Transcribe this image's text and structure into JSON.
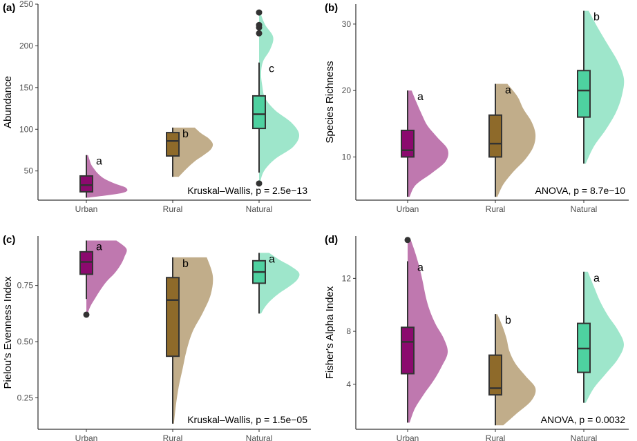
{
  "colors": {
    "Urban": "#8b0a6e",
    "Rural": "#8e6a2a",
    "Natural": "#4ed1a0"
  },
  "chart_data": [
    {
      "type": "raincloud",
      "panel_label": "(a)",
      "ylabel": "Abundance",
      "categories": [
        "Urban",
        "Rural",
        "Natural"
      ],
      "ylim": [
        15,
        250
      ],
      "yticks": [
        50,
        100,
        150,
        200,
        250
      ],
      "ytick_labels": [
        "50",
        "100",
        "150",
        "200",
        "250"
      ],
      "stat_text": "Kruskal–Wallis, p = 2.5e−13",
      "groups": [
        {
          "name": "Urban",
          "q1": 25,
          "median": 33,
          "q3": 44,
          "whisker_low": 18,
          "whisker_high": 69,
          "outliers": [],
          "letter": "a",
          "density_range": [
            18,
            69
          ],
          "density": [
            0.05,
            0.9,
            1.0,
            0.7,
            0.45,
            0.3,
            0.2,
            0.12,
            0.08,
            0.04
          ]
        },
        {
          "name": "Rural",
          "q1": 68,
          "median": 86,
          "q3": 96,
          "whisker_low": 43,
          "whisker_high": 102,
          "outliers": [],
          "letter": "b",
          "density_range": [
            43,
            102
          ],
          "density": [
            0.15,
            0.28,
            0.42,
            0.58,
            0.78,
            0.95,
            1.0,
            0.9,
            0.7,
            0.55
          ]
        },
        {
          "name": "Natural",
          "q1": 101,
          "median": 118,
          "q3": 140,
          "whisker_low": 48,
          "whisker_high": 180,
          "outliers": [
            35,
            215,
            222,
            225,
            240
          ],
          "letter": "c",
          "density_range": [
            35,
            240
          ],
          "density": [
            0.02,
            0.12,
            0.4,
            0.85,
            1.0,
            0.8,
            0.4,
            0.15,
            0.08,
            0.05,
            0.1,
            0.28,
            0.35,
            0.15,
            0.03
          ]
        }
      ]
    },
    {
      "type": "raincloud",
      "panel_label": "(b)",
      "ylabel": "Species Richness",
      "categories": [
        "Urban",
        "Rural",
        "Natural"
      ],
      "ylim": [
        3.5,
        33
      ],
      "yticks": [
        10,
        20,
        30
      ],
      "ytick_labels": [
        "10",
        "20",
        "30"
      ],
      "stat_text": "ANOVA, p = 8.7e−10",
      "groups": [
        {
          "name": "Urban",
          "q1": 10,
          "median": 11,
          "q3": 14,
          "whisker_low": 4,
          "whisker_high": 20,
          "outliers": [],
          "letter": "a",
          "density_range": [
            4,
            20
          ],
          "density": [
            0.05,
            0.2,
            0.6,
            0.95,
            1.0,
            0.75,
            0.5,
            0.35,
            0.22,
            0.1
          ]
        },
        {
          "name": "Rural",
          "q1": 10,
          "median": 12,
          "q3": 16.3,
          "whisker_low": 4,
          "whisker_high": 21,
          "outliers": [],
          "letter": "a",
          "density_range": [
            4,
            21
          ],
          "density": [
            0.05,
            0.2,
            0.45,
            0.75,
            0.95,
            1.0,
            0.9,
            0.7,
            0.55,
            0.3
          ]
        },
        {
          "name": "Natural",
          "q1": 16,
          "median": 20,
          "q3": 23,
          "whisker_low": 9,
          "whisker_high": 32,
          "outliers": [],
          "letter": "b",
          "density_range": [
            9,
            32
          ],
          "density": [
            0.05,
            0.25,
            0.55,
            0.8,
            0.95,
            1.0,
            0.85,
            0.6,
            0.35,
            0.12
          ]
        }
      ]
    },
    {
      "type": "raincloud",
      "panel_label": "(c)",
      "ylabel": "Pielou's Evenness Index",
      "categories": [
        "Urban",
        "Rural",
        "Natural"
      ],
      "ylim": [
        0.11,
        0.97
      ],
      "yticks": [
        0.25,
        0.5,
        0.75
      ],
      "ytick_labels": [
        "0.25",
        "0.50",
        "0.75"
      ],
      "stat_text": "Kruskal–Wallis, p = 1.5e−05",
      "groups": [
        {
          "name": "Urban",
          "q1": 0.8,
          "median": 0.855,
          "q3": 0.9,
          "whisker_low": 0.69,
          "whisker_high": 0.95,
          "outliers": [
            0.62
          ],
          "letter": "a",
          "density_range": [
            0.62,
            0.95
          ],
          "density": [
            0.02,
            0.1,
            0.22,
            0.35,
            0.5,
            0.7,
            0.85,
            0.95,
            1.0,
            0.75
          ]
        },
        {
          "name": "Rural",
          "q1": 0.435,
          "median": 0.685,
          "q3": 0.785,
          "whisker_low": 0.135,
          "whisker_high": 0.875,
          "outliers": [],
          "letter": "b",
          "density_range": [
            0.135,
            0.875
          ],
          "density": [
            0.03,
            0.08,
            0.15,
            0.25,
            0.35,
            0.5,
            0.75,
            0.95,
            1.0,
            0.85
          ]
        },
        {
          "name": "Natural",
          "q1": 0.76,
          "median": 0.81,
          "q3": 0.86,
          "whisker_low": 0.625,
          "whisker_high": 0.895,
          "outliers": [],
          "letter": "a",
          "density_range": [
            0.625,
            0.895
          ],
          "density": [
            0.05,
            0.15,
            0.3,
            0.5,
            0.75,
            0.95,
            1.0,
            0.8,
            0.5,
            0.25
          ]
        }
      ]
    },
    {
      "type": "raincloud",
      "panel_label": "(d)",
      "ylabel": "Fisher's Alpha Index",
      "categories": [
        "Urban",
        "Rural",
        "Natural"
      ],
      "ylim": [
        0.6,
        15.2
      ],
      "yticks": [
        4,
        8,
        12
      ],
      "ytick_labels": [
        "4",
        "8",
        "12"
      ],
      "stat_text": "ANOVA, p = 0.0032",
      "groups": [
        {
          "name": "Urban",
          "q1": 4.8,
          "median": 7.2,
          "q3": 8.3,
          "whisker_low": 1.1,
          "whisker_high": 13.3,
          "outliers": [
            14.9
          ],
          "letter": "a",
          "density_range": [
            1.1,
            14.9
          ],
          "density": [
            0.05,
            0.18,
            0.4,
            0.65,
            0.85,
            1.0,
            0.9,
            0.7,
            0.55,
            0.45,
            0.38,
            0.3,
            0.2,
            0.08
          ]
        },
        {
          "name": "Rural",
          "q1": 3.2,
          "median": 3.7,
          "q3": 6.2,
          "whisker_low": 0.9,
          "whisker_high": 9.3,
          "outliers": [],
          "letter": "b",
          "density_range": [
            0.9,
            9.3
          ],
          "density": [
            0.2,
            0.55,
            0.9,
            1.0,
            0.75,
            0.5,
            0.35,
            0.28,
            0.18,
            0.05
          ]
        },
        {
          "name": "Natural",
          "q1": 4.9,
          "median": 6.7,
          "q3": 8.6,
          "whisker_low": 2.6,
          "whisker_high": 12.5,
          "outliers": [],
          "letter": "a",
          "density_range": [
            2.6,
            12.5
          ],
          "density": [
            0.05,
            0.25,
            0.55,
            0.85,
            1.0,
            0.85,
            0.6,
            0.4,
            0.25,
            0.1
          ]
        }
      ]
    }
  ]
}
